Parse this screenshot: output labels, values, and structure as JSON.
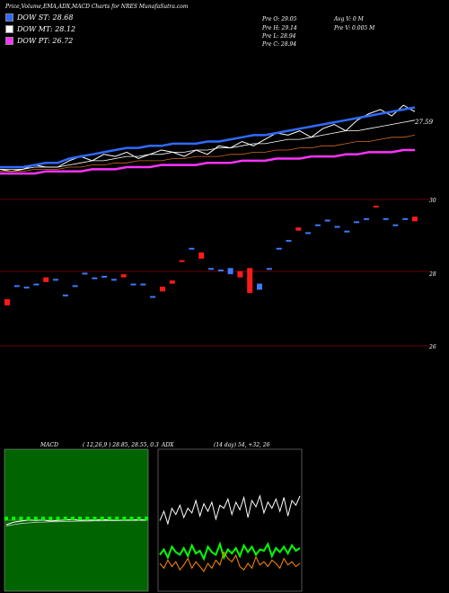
{
  "header": {
    "title": "Price,Volume,EMA,ADX,MACD Charts for NRES MunafaSutra.com",
    "legend": [
      {
        "label": "DOW ST: 28.68",
        "color": "#2f6bff"
      },
      {
        "label": "DOW MT: 28.12",
        "color": "#ffffff"
      },
      {
        "label": "DOW PT: 26.72",
        "color": "#ff33ff"
      }
    ],
    "ohlc": {
      "open": "Pre  O: 29.05",
      "high": "Pre  H: 29.14",
      "low": "Pre  L: 28.94",
      "close": "Pre  C: 28.94"
    },
    "volume": {
      "avg": "Avg V: 0  M",
      "pre": "Pre  V: 0.005 M"
    }
  },
  "chart_data": [
    {
      "type": "line",
      "panel": "price-ema",
      "series": [
        {
          "values": [
            28.2,
            28.1,
            28.2,
            28.4,
            28.3,
            28.3,
            28.6,
            28.8,
            28.6,
            28.9,
            28.8,
            29.0,
            28.7,
            28.9,
            29.1,
            29.0,
            28.8,
            29.1,
            28.9,
            29.3,
            29.2,
            29.5,
            29.3,
            29.6,
            29.9,
            29.8,
            30.0,
            29.7,
            30.1,
            30.3,
            30.0,
            30.5,
            30.8,
            31.0,
            30.7,
            31.2,
            30.9
          ]
        },
        {
          "values": [
            28.3,
            28.3,
            28.3,
            28.4,
            28.5,
            28.5,
            28.7,
            28.8,
            28.9,
            29.0,
            29.1,
            29.2,
            29.2,
            29.3,
            29.3,
            29.4,
            29.4,
            29.4,
            29.5,
            29.5,
            29.6,
            29.7,
            29.8,
            29.8,
            29.9,
            30.0,
            30.1,
            30.2,
            30.3,
            30.4,
            30.5,
            30.6,
            30.7,
            30.8,
            30.9,
            31.0,
            31.1
          ]
        },
        {
          "values": [
            28.2,
            28.2,
            28.2,
            28.3,
            28.3,
            28.3,
            28.4,
            28.5,
            28.6,
            28.6,
            28.7,
            28.8,
            28.8,
            28.9,
            28.9,
            29.0,
            29.0,
            29.1,
            29.1,
            29.2,
            29.2,
            29.3,
            29.4,
            29.4,
            29.5,
            29.6,
            29.6,
            29.7,
            29.8,
            29.9,
            30.0,
            30.0,
            30.1,
            30.2,
            30.3,
            30.4,
            30.5
          ]
        },
        {
          "values": [
            28.1,
            28.1,
            28.1,
            28.2,
            28.2,
            28.2,
            28.3,
            28.3,
            28.4,
            28.4,
            28.5,
            28.5,
            28.6,
            28.6,
            28.6,
            28.7,
            28.7,
            28.8,
            28.8,
            28.8,
            28.9,
            28.9,
            29.0,
            29.0,
            29.1,
            29.1,
            29.2,
            29.2,
            29.3,
            29.3,
            29.4,
            29.5,
            29.5,
            29.6,
            29.7,
            29.7,
            29.8
          ]
        },
        {
          "values": [
            28.0,
            28.0,
            28.0,
            28.0,
            28.1,
            28.1,
            28.1,
            28.1,
            28.2,
            28.2,
            28.2,
            28.3,
            28.3,
            28.3,
            28.4,
            28.4,
            28.4,
            28.4,
            28.5,
            28.5,
            28.5,
            28.6,
            28.6,
            28.6,
            28.7,
            28.7,
            28.7,
            28.8,
            28.8,
            28.8,
            28.9,
            28.9,
            29.0,
            29.0,
            29.0,
            29.1,
            29.1
          ]
        }
      ],
      "annotation": "27.59"
    },
    {
      "type": "candlestick",
      "panel": "price-candles",
      "y_ticks": [
        "30",
        "28",
        "26"
      ],
      "ylim": [
        25.5,
        30.2
      ],
      "candles": [
        {
          "o": 27.0,
          "c": 26.8,
          "d": "down"
        },
        {
          "o": 27.4,
          "c": 27.45,
          "d": "up"
        },
        {
          "o": 27.35,
          "c": 27.4,
          "d": "up"
        },
        {
          "o": 27.45,
          "c": 27.5,
          "d": "up"
        },
        {
          "o": 27.55,
          "c": 27.7,
          "d": "down"
        },
        {
          "o": 27.6,
          "c": 27.65,
          "d": "up"
        },
        {
          "o": 27.1,
          "c": 27.15,
          "d": "up"
        },
        {
          "o": 27.4,
          "c": 27.45,
          "d": "up"
        },
        {
          "o": 27.8,
          "c": 27.85,
          "d": "up"
        },
        {
          "o": 27.65,
          "c": 27.7,
          "d": "up"
        },
        {
          "o": 27.7,
          "c": 27.75,
          "d": "up"
        },
        {
          "o": 27.6,
          "c": 27.65,
          "d": "up"
        },
        {
          "o": 27.8,
          "c": 27.7,
          "d": "down"
        },
        {
          "o": 27.45,
          "c": 27.5,
          "d": "up"
        },
        {
          "o": 27.45,
          "c": 27.5,
          "d": "up"
        },
        {
          "o": 27.05,
          "c": 27.1,
          "d": "up"
        },
        {
          "o": 27.25,
          "c": 27.4,
          "d": "down"
        },
        {
          "o": 27.5,
          "c": 27.6,
          "d": "down"
        },
        {
          "o": 28.2,
          "c": 28.25,
          "d": "down"
        },
        {
          "o": 28.6,
          "c": 28.65,
          "d": "up"
        },
        {
          "o": 28.5,
          "c": 28.3,
          "d": "down"
        },
        {
          "o": 27.95,
          "c": 28.0,
          "d": "up"
        },
        {
          "o": 27.9,
          "c": 27.95,
          "d": "up"
        },
        {
          "o": 28.0,
          "c": 27.8,
          "d": "up"
        },
        {
          "o": 27.9,
          "c": 27.7,
          "d": "down"
        },
        {
          "o": 28.0,
          "c": 27.2,
          "d": "down"
        },
        {
          "o": 27.3,
          "c": 27.5,
          "d": "up"
        },
        {
          "o": 27.95,
          "c": 28.0,
          "d": "up"
        },
        {
          "o": 28.6,
          "c": 28.65,
          "d": "up"
        },
        {
          "o": 28.85,
          "c": 28.9,
          "d": "up"
        },
        {
          "o": 29.2,
          "c": 29.3,
          "d": "down"
        },
        {
          "o": 29.1,
          "c": 29.15,
          "d": "up"
        },
        {
          "o": 29.35,
          "c": 29.4,
          "d": "up"
        },
        {
          "o": 29.5,
          "c": 29.55,
          "d": "up"
        },
        {
          "o": 29.3,
          "c": 29.35,
          "d": "up"
        },
        {
          "o": 29.15,
          "c": 29.2,
          "d": "up"
        },
        {
          "o": 29.45,
          "c": 29.5,
          "d": "up"
        },
        {
          "o": 29.55,
          "c": 29.6,
          "d": "up"
        },
        {
          "o": 29.95,
          "c": 30.0,
          "d": "down"
        },
        {
          "o": 29.55,
          "c": 29.6,
          "d": "up"
        },
        {
          "o": 29.35,
          "c": 29.4,
          "d": "up"
        },
        {
          "o": 29.55,
          "c": 29.6,
          "d": "up"
        },
        {
          "o": 29.65,
          "c": 29.5,
          "d": "down"
        }
      ]
    },
    {
      "type": "line",
      "panel": "macd",
      "label": "MACD",
      "params": "( 12,26,9 ) 28.85,  28.55,  0.3",
      "series": [
        {
          "values": [
            0.2,
            0.4,
            0.5,
            0.6,
            0.55,
            0.6,
            0.5,
            0.55,
            0.6,
            0.65,
            0.55,
            0.6,
            0.58,
            0.62,
            0.6,
            0.55,
            0.58,
            0.6,
            0.62,
            0.6
          ]
        },
        {
          "values": [
            0.1,
            0.2,
            0.3,
            0.35,
            0.4,
            0.42,
            0.45,
            0.45,
            0.47,
            0.48,
            0.5,
            0.5,
            0.52,
            0.52,
            0.53,
            0.54,
            0.55,
            0.55,
            0.56,
            0.56
          ]
        }
      ]
    },
    {
      "type": "line",
      "panel": "adx",
      "label": "ADX",
      "params": "(14 day) 54,  +32,  26",
      "series": [
        {
          "values": [
            42,
            48,
            40,
            50,
            46,
            52,
            44,
            50,
            47,
            55,
            45,
            53,
            48,
            54,
            43,
            52,
            50,
            56,
            46,
            54,
            49,
            57,
            44,
            55,
            51,
            58,
            47,
            54,
            50,
            56,
            48,
            57,
            45,
            55,
            52,
            58
          ]
        },
        {
          "values": [
            20,
            24,
            18,
            26,
            22,
            20,
            25,
            19,
            27,
            21,
            23,
            17,
            26,
            22,
            20,
            28,
            18,
            24,
            21,
            25,
            19,
            27,
            22,
            26,
            20,
            24,
            23,
            28,
            19,
            25,
            22,
            26,
            21,
            27,
            23,
            25
          ]
        },
        {
          "values": [
            15,
            12,
            17,
            13,
            16,
            11,
            14,
            18,
            12,
            16,
            13,
            10,
            15,
            12,
            17,
            14,
            22,
            18,
            16,
            20,
            13,
            11,
            15,
            12,
            19,
            14,
            16,
            13,
            17,
            15,
            12,
            18,
            14,
            16,
            13,
            15
          ]
        }
      ]
    }
  ]
}
